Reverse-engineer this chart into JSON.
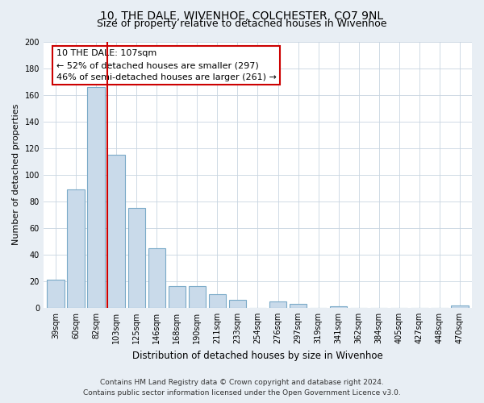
{
  "title": "10, THE DALE, WIVENHOE, COLCHESTER, CO7 9NL",
  "subtitle": "Size of property relative to detached houses in Wivenhoe",
  "xlabel": "Distribution of detached houses by size in Wivenhoe",
  "ylabel": "Number of detached properties",
  "bar_labels": [
    "39sqm",
    "60sqm",
    "82sqm",
    "103sqm",
    "125sqm",
    "146sqm",
    "168sqm",
    "190sqm",
    "211sqm",
    "233sqm",
    "254sqm",
    "276sqm",
    "297sqm",
    "319sqm",
    "341sqm",
    "362sqm",
    "384sqm",
    "405sqm",
    "427sqm",
    "448sqm",
    "470sqm"
  ],
  "bar_values": [
    21,
    89,
    166,
    115,
    75,
    45,
    16,
    16,
    10,
    6,
    0,
    5,
    3,
    0,
    1,
    0,
    0,
    0,
    0,
    0,
    2
  ],
  "bar_color": "#c9daea",
  "bar_edge_color": "#7aaac8",
  "vline_color": "#cc0000",
  "vline_x_index": 3,
  "annotation_line1": "10 THE DALE: 107sqm",
  "annotation_line2": "← 52% of detached houses are smaller (297)",
  "annotation_line3": "46% of semi-detached houses are larger (261) →",
  "ylim": [
    0,
    200
  ],
  "yticks": [
    0,
    20,
    40,
    60,
    80,
    100,
    120,
    140,
    160,
    180,
    200
  ],
  "footer_line1": "Contains HM Land Registry data © Crown copyright and database right 2024.",
  "footer_line2": "Contains public sector information licensed under the Open Government Licence v3.0.",
  "bg_color": "#e8eef4",
  "plot_bg_color": "#ffffff",
  "grid_color": "#c8d4e0",
  "title_fontsize": 10,
  "subtitle_fontsize": 9,
  "xlabel_fontsize": 8.5,
  "ylabel_fontsize": 8,
  "tick_fontsize": 7,
  "annotation_fontsize": 8,
  "footer_fontsize": 6.5
}
